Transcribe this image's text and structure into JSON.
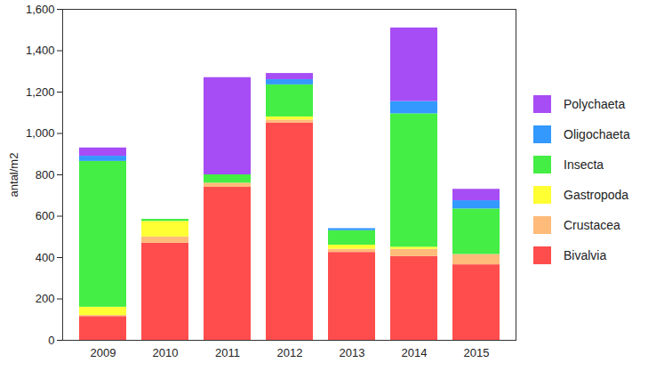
{
  "chart_data": {
    "type": "bar",
    "stacked": true,
    "legend": "right",
    "ylabel": "antal/m2",
    "categories": [
      "2009",
      "2010",
      "2011",
      "2012",
      "2013",
      "2014",
      "2015"
    ],
    "ylim": [
      0,
      1600
    ],
    "yticks": [
      0,
      200,
      400,
      600,
      800,
      1000,
      1200,
      1400,
      1600
    ],
    "series": [
      {
        "name": "Bivalvia",
        "color": "#ff4d4d",
        "values": [
          115,
          470,
          740,
          1050,
          425,
          405,
          365
        ]
      },
      {
        "name": "Crustacea",
        "color": "#ffbb7a",
        "values": [
          5,
          30,
          20,
          15,
          15,
          35,
          50
        ]
      },
      {
        "name": "Gastropoda",
        "color": "#ffff33",
        "values": [
          40,
          75,
          0,
          15,
          20,
          10,
          0
        ]
      },
      {
        "name": "Insecta",
        "color": "#44ee44",
        "values": [
          705,
          10,
          40,
          155,
          70,
          645,
          220
        ]
      },
      {
        "name": "Oligochaeta",
        "color": "#3399ff",
        "values": [
          25,
          0,
          0,
          25,
          10,
          60,
          40
        ]
      },
      {
        "name": "Polychaeta",
        "color": "#a64df5",
        "values": [
          40,
          0,
          470,
          30,
          0,
          355,
          55
        ]
      }
    ]
  }
}
